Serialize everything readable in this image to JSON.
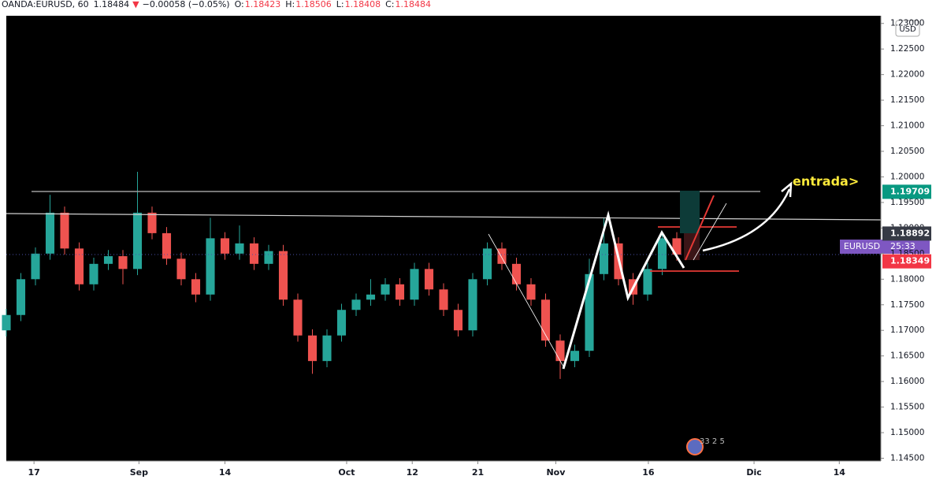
{
  "chart_data": {
    "type": "candlestick",
    "header": {
      "symbol": "OANDA:EURUSD, 60",
      "last": "1.18484",
      "arrow": "▼",
      "change": "−0.00058 (−0.05%)",
      "ohlc": [
        {
          "label": "O:",
          "value": "1.18423"
        },
        {
          "label": "H:",
          "value": "1.18506"
        },
        {
          "label": "L:",
          "value": "1.18408"
        },
        {
          "label": "C:",
          "value": "1.18484"
        }
      ]
    },
    "currency": "USD",
    "annotation": "entrada>",
    "badge": "33 2 5",
    "symbol_label": {
      "name": "EURUSD",
      "countdown": "25:33"
    },
    "up_color": "#26a69a",
    "down_color": "#ef5350",
    "x": [
      0,
      2,
      4,
      6,
      8,
      10,
      12,
      14,
      16,
      18,
      20,
      22,
      24,
      26,
      28,
      30,
      32,
      34,
      36,
      38,
      40,
      42,
      44,
      46,
      48,
      50,
      52,
      54,
      56,
      58,
      60,
      62,
      64,
      66,
      68,
      70,
      72,
      74,
      76,
      78,
      80,
      82,
      84,
      86,
      88,
      90,
      92
    ],
    "open": [
      1.17,
      1.173,
      1.18,
      1.185,
      1.193,
      1.186,
      1.179,
      1.183,
      1.1845,
      1.182,
      1.193,
      1.189,
      1.184,
      1.18,
      1.177,
      1.188,
      1.185,
      1.187,
      1.183,
      1.1855,
      1.176,
      1.169,
      1.164,
      1.169,
      1.174,
      1.176,
      1.177,
      1.179,
      1.176,
      1.182,
      1.178,
      1.174,
      1.17,
      1.18,
      1.186,
      1.183,
      1.179,
      1.176,
      1.168,
      1.164,
      1.166,
      1.181,
      1.187,
      1.18,
      1.177,
      1.182,
      1.188
    ],
    "high": [
      1.1742,
      1.1812,
      1.1862,
      1.1965,
      1.1942,
      1.1872,
      1.1842,
      1.1857,
      1.1857,
      1.201,
      1.1942,
      1.1902,
      1.1852,
      1.1812,
      1.192,
      1.1892,
      1.1905,
      1.1882,
      1.1867,
      1.1867,
      1.1772,
      1.1702,
      1.1702,
      1.1752,
      1.1772,
      1.18,
      1.1802,
      1.1802,
      1.1832,
      1.1832,
      1.1792,
      1.1752,
      1.1812,
      1.1872,
      1.1872,
      1.1842,
      1.1802,
      1.1772,
      1.1692,
      1.1672,
      1.184,
      1.192,
      1.1882,
      1.1812,
      1.1832,
      1.1892,
      1.1892
    ],
    "low": [
      1.1688,
      1.1718,
      1.1788,
      1.1838,
      1.1848,
      1.1778,
      1.1778,
      1.1818,
      1.179,
      1.1808,
      1.1878,
      1.1828,
      1.1788,
      1.1755,
      1.1758,
      1.1838,
      1.1838,
      1.1818,
      1.1818,
      1.1748,
      1.1678,
      1.1615,
      1.1628,
      1.1678,
      1.1728,
      1.1748,
      1.1758,
      1.1748,
      1.1748,
      1.1768,
      1.1728,
      1.1688,
      1.1688,
      1.1788,
      1.1818,
      1.1778,
      1.1748,
      1.1668,
      1.1605,
      1.1628,
      1.1648,
      1.1798,
      1.1788,
      1.175,
      1.1758,
      1.1808,
      1.1836
    ],
    "close": [
      1.173,
      1.18,
      1.185,
      1.193,
      1.186,
      1.179,
      1.183,
      1.1845,
      1.182,
      1.193,
      1.189,
      1.184,
      1.18,
      1.177,
      1.188,
      1.185,
      1.187,
      1.183,
      1.1855,
      1.176,
      1.169,
      1.164,
      1.169,
      1.174,
      1.176,
      1.177,
      1.179,
      1.176,
      1.182,
      1.178,
      1.174,
      1.17,
      1.18,
      1.186,
      1.183,
      1.179,
      1.176,
      1.168,
      1.164,
      1.166,
      1.181,
      1.187,
      1.18,
      1.177,
      1.182,
      1.188,
      1.1848
    ],
    "xlim": [
      0,
      120
    ],
    "xticks": [
      {
        "value": 3.8,
        "label": "17"
      },
      {
        "value": 18.2,
        "label": "Sep"
      },
      {
        "value": 30,
        "label": "14"
      },
      {
        "value": 46.7,
        "label": "Oct"
      },
      {
        "value": 55.7,
        "label": "12"
      },
      {
        "value": 64.7,
        "label": "21"
      },
      {
        "value": 75.4,
        "label": "Nov"
      },
      {
        "value": 88.1,
        "label": "16"
      },
      {
        "value": 102.6,
        "label": "Dic"
      },
      {
        "value": 114.3,
        "label": "14"
      }
    ],
    "ylim": [
      1.14446,
      1.2315
    ],
    "yticks": [
      {
        "value": 1.145,
        "label": "1.14500"
      },
      {
        "value": 1.15,
        "label": "1.15000"
      },
      {
        "value": 1.155,
        "label": "1.15500"
      },
      {
        "value": 1.16,
        "label": "1.16000"
      },
      {
        "value": 1.165,
        "label": "1.16500"
      },
      {
        "value": 1.17,
        "label": "1.17000"
      },
      {
        "value": 1.175,
        "label": "1.17500"
      },
      {
        "value": 1.18,
        "label": "1.18000"
      },
      {
        "value": 1.185,
        "label": "1.18500"
      },
      {
        "value": 1.19,
        "label": "1.19000"
      },
      {
        "value": 1.195,
        "label": "1.19500"
      },
      {
        "value": 1.2,
        "label": "1.20000"
      },
      {
        "value": 1.205,
        "label": "1.20500"
      },
      {
        "value": 1.21,
        "label": "1.21000"
      },
      {
        "value": 1.215,
        "label": "1.21500"
      },
      {
        "value": 1.22,
        "label": "1.22000"
      },
      {
        "value": 1.225,
        "label": "1.22500"
      },
      {
        "value": 1.23,
        "label": "1.23000"
      }
    ],
    "price_labels": [
      {
        "value": 1.19709,
        "label": "1.19709",
        "color": "#089981"
      },
      {
        "value": 1.18892,
        "label": "1.18892",
        "color": "#363a45"
      },
      {
        "value": 1.18349,
        "label": "1.18349",
        "color": "#f23645"
      }
    ]
  }
}
